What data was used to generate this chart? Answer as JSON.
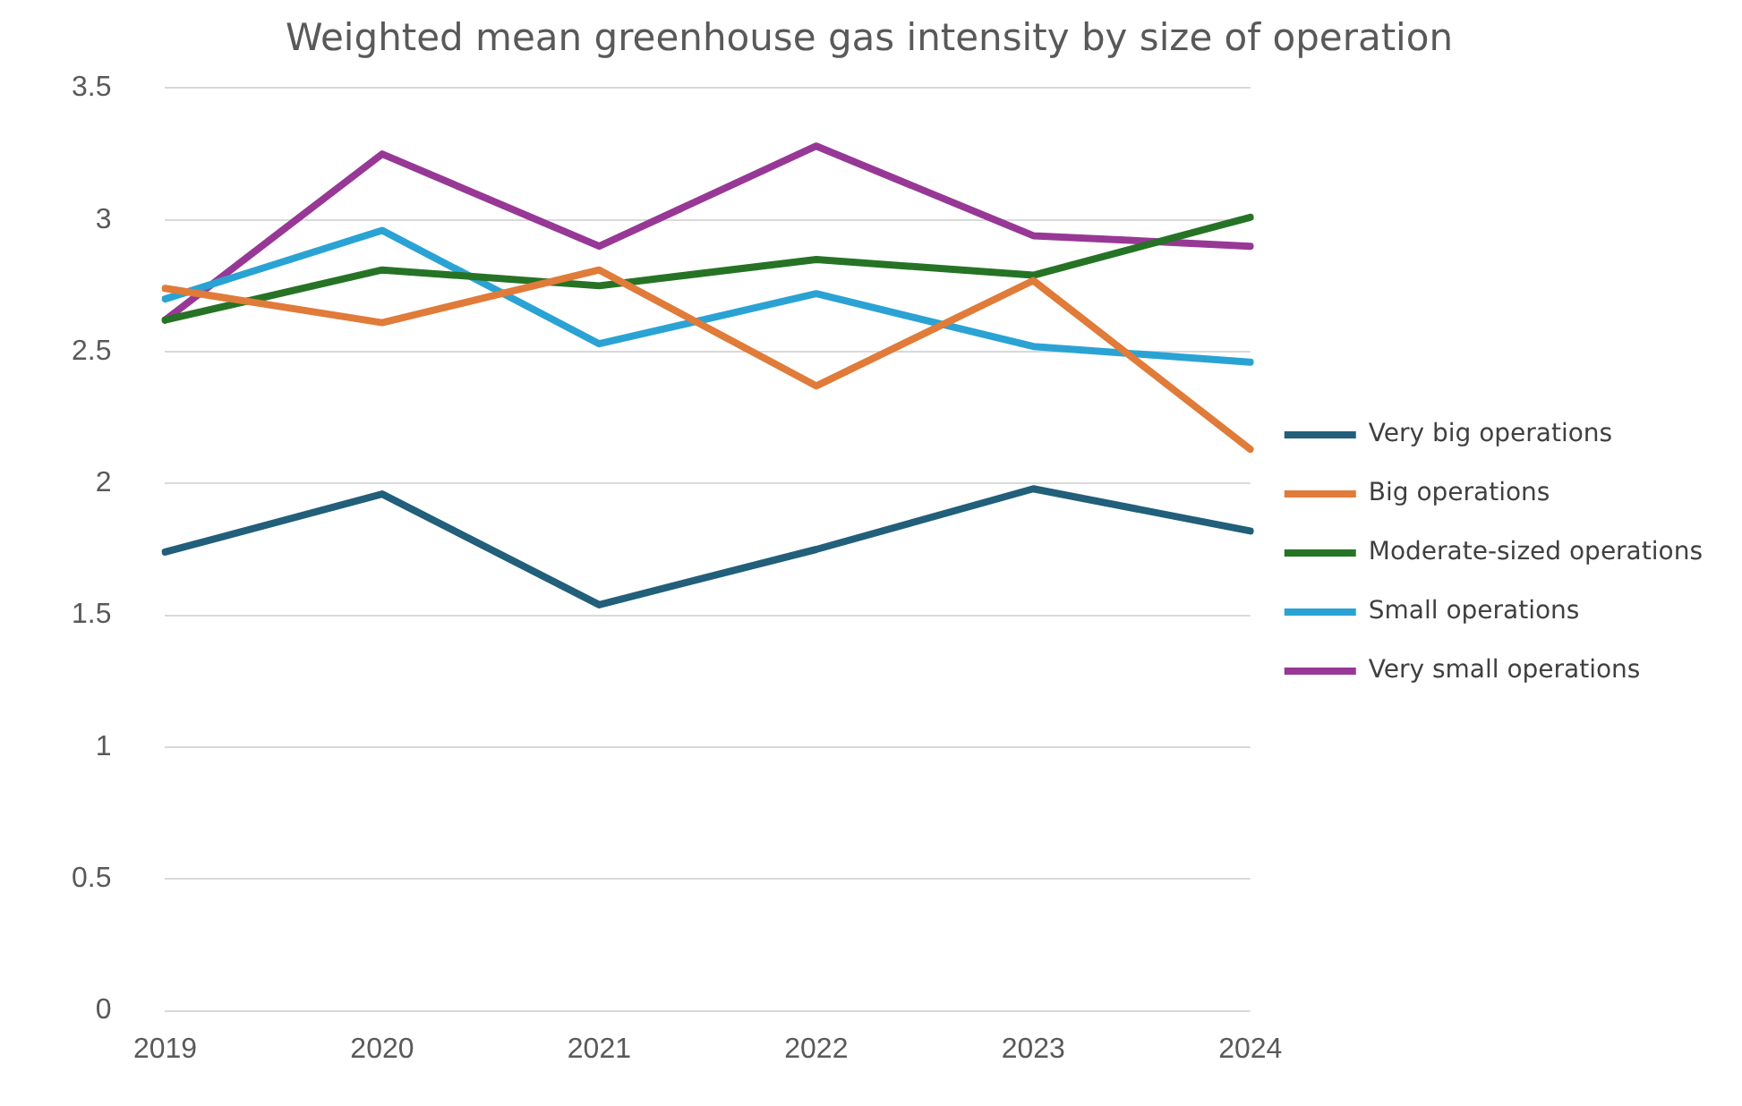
{
  "chart_data": {
    "type": "line",
    "title": "Weighted mean greenhouse gas intensity by size of operation",
    "categories": [
      "2019",
      "2020",
      "2021",
      "2022",
      "2023",
      "2024"
    ],
    "series": [
      {
        "name": "Very big operations",
        "color": "#215f7a",
        "values": [
          1.74,
          1.96,
          1.54,
          1.75,
          1.98,
          1.82
        ]
      },
      {
        "name": "Big operations",
        "color": "#e07b39",
        "values": [
          2.74,
          2.61,
          2.81,
          2.37,
          2.77,
          2.13
        ]
      },
      {
        "name": "Moderate-sized operations",
        "color": "#267326",
        "values": [
          2.62,
          2.81,
          2.75,
          2.85,
          2.79,
          3.01
        ]
      },
      {
        "name": "Small operations",
        "color": "#2aa3d4",
        "values": [
          2.7,
          2.96,
          2.53,
          2.72,
          2.52,
          2.46
        ]
      },
      {
        "name": "Very small operations",
        "color": "#983896",
        "values": [
          2.62,
          3.25,
          2.9,
          3.28,
          2.94,
          2.9
        ]
      }
    ],
    "ylim": [
      0,
      3.5
    ],
    "yticks": [
      0,
      0.5,
      1,
      1.5,
      2,
      2.5,
      3,
      3.5
    ],
    "grid": "y",
    "legend": "right",
    "marker": "none",
    "line_style": "solid"
  }
}
